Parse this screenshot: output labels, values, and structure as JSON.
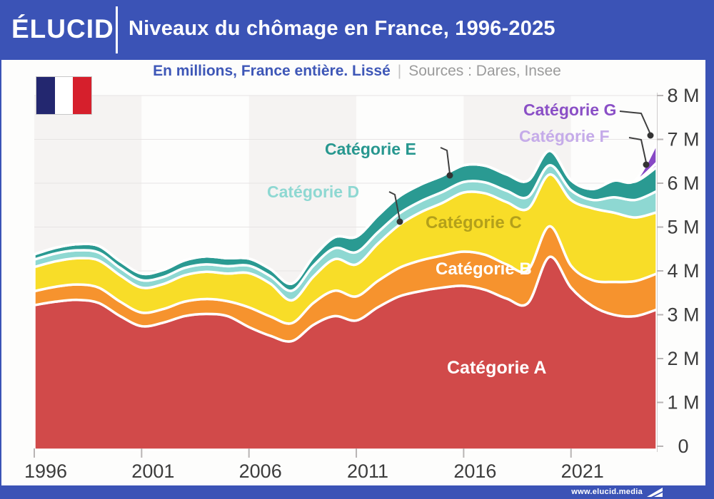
{
  "header": {
    "logo": "ÉLUCID",
    "title": "Niveaux du chômage en France, 1996-2025"
  },
  "subtitle": {
    "note": "En millions, France entière. Lissé",
    "separator": "|",
    "sources": "Sources : Dares, Insee"
  },
  "footer": {
    "url": "www.elucid.media"
  },
  "colors": {
    "header_bg": "#3b53b6",
    "subtitle_note": "#3e57b7",
    "subtitle_sources": "#9b9b9b",
    "axis_text": "#3c3c3c",
    "gridline": "#e7e4e4",
    "band_separator": "#ffffff",
    "flag_blue": "#23276f",
    "flag_red": "#d61f2c"
  },
  "chart_data": {
    "type": "area",
    "stacked": true,
    "smoothed": true,
    "title": "Niveaux du chômage en France, 1996-2025",
    "unit": "millions",
    "xlim": [
      1996,
      2025
    ],
    "ylim": [
      0,
      8
    ],
    "xticks": [
      1996,
      2001,
      2006,
      2011,
      2016,
      2021
    ],
    "ytick_labels": [
      "0",
      "1 M",
      "2 M",
      "3 M",
      "4 M",
      "5 M",
      "6 M",
      "7 M",
      "8 M"
    ],
    "grid": "horizontal",
    "legend_position": "inline-annotations",
    "x": [
      1996,
      1997,
      1998,
      1999,
      2000,
      2001,
      2002,
      2003,
      2004,
      2005,
      2006,
      2007,
      2008,
      2009,
      2010,
      2011,
      2012,
      2013,
      2014,
      2015,
      2016,
      2017,
      2018,
      2019,
      2020,
      2021,
      2022,
      2023,
      2024,
      2025
    ],
    "series": [
      {
        "name": "Catégorie A",
        "color": "#d14a4a",
        "label_color": "#ffffff",
        "values": [
          3.3,
          3.38,
          3.42,
          3.35,
          3.05,
          2.82,
          2.9,
          3.05,
          3.1,
          3.05,
          2.8,
          2.6,
          2.48,
          2.85,
          3.05,
          2.95,
          3.25,
          3.5,
          3.62,
          3.7,
          3.74,
          3.65,
          3.45,
          3.35,
          4.4,
          3.7,
          3.28,
          3.08,
          3.05,
          3.2
        ]
      },
      {
        "name": "Catégorie B",
        "color": "#f6932e",
        "label_color": "#ffffff",
        "values": [
          0.32,
          0.34,
          0.35,
          0.35,
          0.33,
          0.31,
          0.31,
          0.33,
          0.34,
          0.34,
          0.45,
          0.44,
          0.41,
          0.5,
          0.58,
          0.55,
          0.6,
          0.65,
          0.7,
          0.73,
          0.78,
          0.8,
          0.78,
          0.75,
          0.7,
          0.5,
          0.59,
          0.75,
          0.8,
          0.82
        ]
      },
      {
        "name": "Catégorie C",
        "color": "#f8dd28",
        "label_color": "#b3a01b",
        "values": [
          0.55,
          0.58,
          0.6,
          0.62,
          0.6,
          0.57,
          0.57,
          0.6,
          0.62,
          0.63,
          0.78,
          0.75,
          0.52,
          0.6,
          0.72,
          0.73,
          0.85,
          0.98,
          1.1,
          1.2,
          1.35,
          1.4,
          1.42,
          1.4,
          1.18,
          1.5,
          1.64,
          1.58,
          1.45,
          1.4
        ]
      },
      {
        "name": "Catégorie D",
        "color": "#8ed8d2",
        "label_color": "#8ed8d2",
        "values": [
          0.17,
          0.18,
          0.18,
          0.18,
          0.17,
          0.17,
          0.16,
          0.17,
          0.17,
          0.17,
          0.17,
          0.17,
          0.22,
          0.25,
          0.25,
          0.28,
          0.26,
          0.26,
          0.25,
          0.25,
          0.24,
          0.25,
          0.26,
          0.27,
          0.21,
          0.22,
          0.19,
          0.35,
          0.4,
          0.48
        ]
      },
      {
        "name": "Catégorie E",
        "color": "#2a9a92",
        "label_color": "#27978f",
        "values": [
          0.12,
          0.13,
          0.14,
          0.15,
          0.15,
          0.15,
          0.16,
          0.17,
          0.18,
          0.18,
          0.16,
          0.16,
          0.16,
          0.2,
          0.25,
          0.35,
          0.38,
          0.39,
          0.38,
          0.37,
          0.38,
          0.38,
          0.37,
          0.37,
          0.33,
          0.23,
          0.25,
          0.38,
          0.42,
          0.55
        ]
      },
      {
        "name": "Catégorie F",
        "color": "#c3a4e6",
        "label_color": "#c5abe9",
        "values": [
          0,
          0,
          0,
          0,
          0,
          0,
          0,
          0,
          0,
          0,
          0,
          0,
          0,
          0,
          0,
          0,
          0,
          0,
          0,
          0,
          0,
          0,
          0,
          0,
          0,
          0,
          0,
          0,
          0.01,
          0.1
        ]
      },
      {
        "name": "Catégorie G",
        "color": "#8748c5",
        "label_color": "#8a4fc6",
        "values": [
          0,
          0,
          0,
          0,
          0,
          0,
          0,
          0,
          0,
          0,
          0,
          0,
          0,
          0,
          0,
          0,
          0,
          0,
          0,
          0,
          0,
          0,
          0,
          0,
          0,
          0,
          0,
          0,
          0.02,
          0.45
        ]
      }
    ]
  }
}
